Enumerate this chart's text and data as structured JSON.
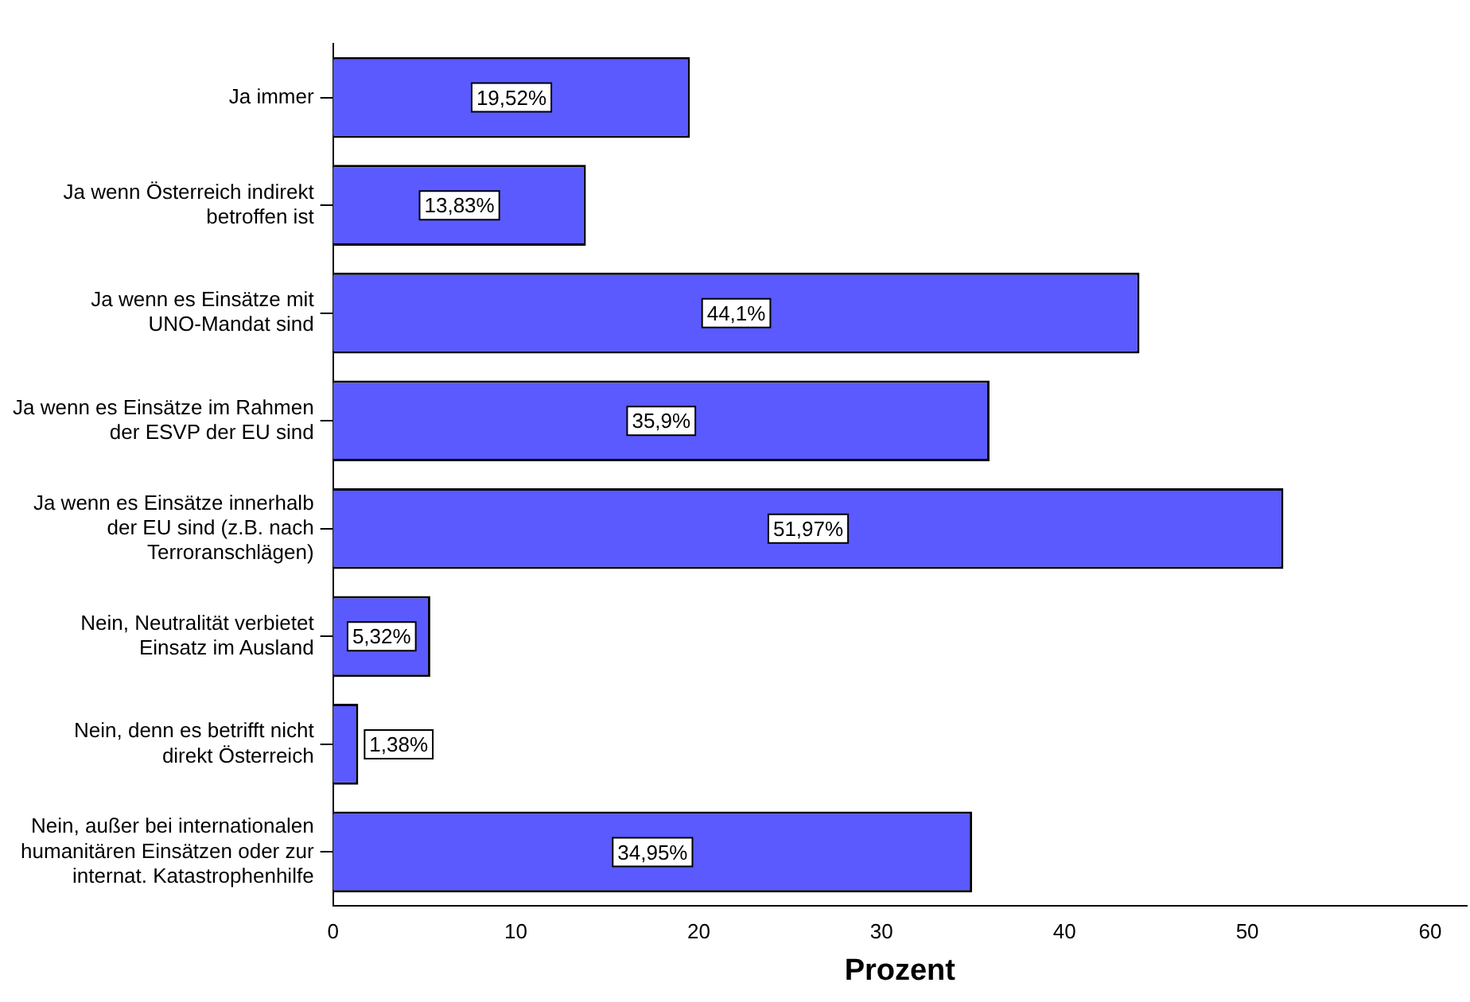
{
  "chart_data": {
    "type": "bar",
    "orientation": "horizontal",
    "xlabel": "Prozent",
    "categories": [
      "Ja immer",
      "Ja wenn Österreich indirekt betroffen ist",
      "Ja wenn es Einsätze mit UNO-Mandat sind",
      "Ja wenn es Einsätze im Rahmen der ESVP der EU sind",
      "Ja wenn es Einsätze innerhalb der EU sind (z.B. nach Terroranschlägen)",
      "Nein, Neutralität verbietet Einsatz im Ausland",
      "Nein, denn es betrifft nicht direkt Österreich",
      "Nein, außer bei internationalen humanitären Einsätzen oder zur internat. Katastrophenhilfe"
    ],
    "values": [
      19.52,
      13.83,
      44.1,
      35.9,
      51.97,
      5.32,
      1.38,
      34.95
    ],
    "value_labels": [
      "19,52%",
      "13,83%",
      "44,1%",
      "35,9%",
      "51,97%",
      "5,32%",
      "1,38%",
      "34,95%"
    ],
    "color": "#5a5aff",
    "xlim": [
      0,
      62
    ],
    "xticks": [
      0,
      10,
      20,
      30,
      40,
      50,
      60
    ],
    "grid": false,
    "legend": false
  }
}
